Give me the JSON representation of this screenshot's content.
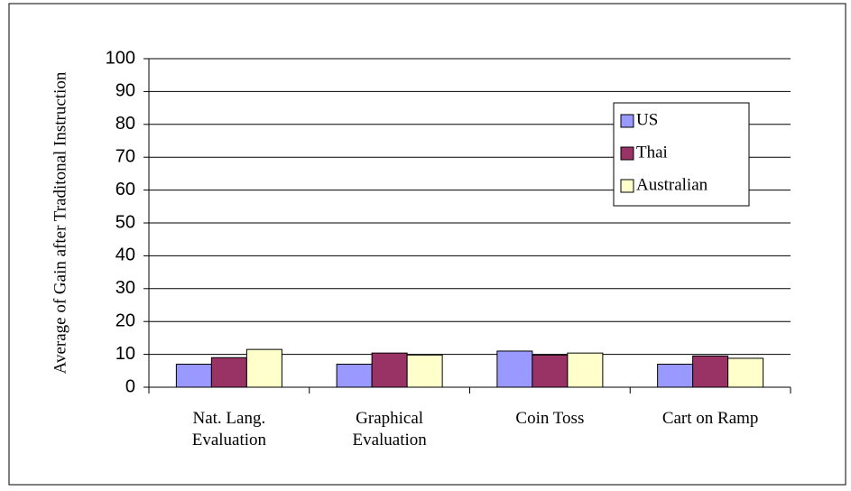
{
  "chart_data": {
    "type": "bar",
    "y_label": "Average of Gain after Traditonal Instruction",
    "categories": [
      "Nat. Lang. Evaluation",
      "Graphical Evaluation",
      "Coin Toss",
      "Cart on Ramp"
    ],
    "series": [
      {
        "name": "US",
        "color": "#9999ff",
        "values": [
          7,
          7,
          11,
          7
        ]
      },
      {
        "name": "Thai",
        "color": "#993366",
        "values": [
          9,
          10.4,
          9.8,
          9.5
        ]
      },
      {
        "name": "Australian",
        "color": "#ffffcc",
        "values": [
          11.5,
          9.8,
          10.4,
          8.8
        ]
      }
    ],
    "ylim": [
      0,
      100
    ],
    "yticks": [
      0,
      10,
      20,
      30,
      40,
      50,
      60,
      70,
      80,
      90,
      100
    ],
    "grid": true,
    "legend": "upper right"
  }
}
